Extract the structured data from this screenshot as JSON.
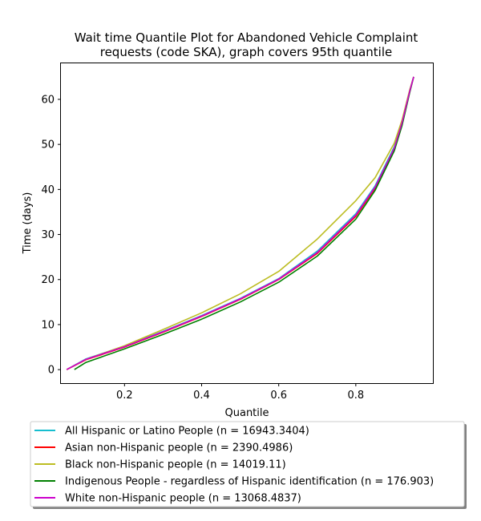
{
  "chart_data": {
    "type": "line",
    "title_lines": [
      "Wait time Quantile Plot for Abandoned Vehicle Complaint",
      "requests (code SKA), graph covers 95th quantile"
    ],
    "xlabel": "Quantile",
    "ylabel": "Time (days)",
    "xlim": [
      0.035,
      1.0
    ],
    "ylim": [
      -3,
      68
    ],
    "xticks": [
      0.2,
      0.4,
      0.6,
      0.8
    ],
    "xtick_labels": [
      "0.2",
      "0.4",
      "0.6",
      "0.8"
    ],
    "yticks": [
      0,
      10,
      20,
      30,
      40,
      50,
      60
    ],
    "ytick_labels": [
      "0",
      "10",
      "20",
      "30",
      "40",
      "50",
      "60"
    ],
    "grid": false,
    "legend_position": "below",
    "series": [
      {
        "name": "All Hispanic or Latino People (n = 16943.3404)",
        "color": "#17becf",
        "x": [
          0.05,
          0.1,
          0.2,
          0.3,
          0.4,
          0.5,
          0.6,
          0.7,
          0.8,
          0.85,
          0.9,
          0.92,
          0.94,
          0.95
        ],
        "y": [
          0,
          2.4,
          5.2,
          8.5,
          12.0,
          15.8,
          20.2,
          26.3,
          34.6,
          40.8,
          49.5,
          55.0,
          62.0,
          65.0
        ]
      },
      {
        "name": "Asian non-Hispanic people (n = 2390.4986)",
        "color": "#ff0000",
        "x": [
          0.05,
          0.1,
          0.2,
          0.3,
          0.4,
          0.5,
          0.6,
          0.7,
          0.8,
          0.85,
          0.9,
          0.92,
          0.94,
          0.95
        ],
        "y": [
          0,
          2.2,
          5.0,
          8.3,
          11.8,
          15.6,
          20.0,
          25.8,
          34.0,
          40.3,
          49.0,
          54.6,
          61.8,
          65.0
        ]
      },
      {
        "name": "Black non-Hispanic people (n = 14019.11)",
        "color": "#bcbd22",
        "x": [
          0.05,
          0.1,
          0.2,
          0.3,
          0.4,
          0.5,
          0.6,
          0.7,
          0.8,
          0.85,
          0.9,
          0.92,
          0.94,
          0.95
        ],
        "y": [
          0,
          2.3,
          5.3,
          8.9,
          12.6,
          16.8,
          21.8,
          29.0,
          37.5,
          42.6,
          50.3,
          55.4,
          62.2,
          65.0
        ]
      },
      {
        "name": "Indigenous People - regardless of Hispanic identification (n = 176.903)",
        "color": "#008000",
        "x": [
          0.07,
          0.1,
          0.2,
          0.3,
          0.4,
          0.5,
          0.6,
          0.7,
          0.8,
          0.85,
          0.9,
          0.92,
          0.94,
          0.95
        ],
        "y": [
          0,
          1.6,
          4.6,
          7.8,
          11.2,
          15.0,
          19.4,
          25.2,
          33.4,
          39.8,
          48.6,
          54.2,
          61.6,
          65.0
        ]
      },
      {
        "name": "White non-Hispanic people (n = 13068.4837)",
        "color": "#cc00cc",
        "x": [
          0.05,
          0.1,
          0.2,
          0.3,
          0.4,
          0.5,
          0.6,
          0.7,
          0.8,
          0.85,
          0.9,
          0.92,
          0.94,
          0.95
        ],
        "y": [
          0,
          2.3,
          5.1,
          8.4,
          11.9,
          15.7,
          20.1,
          26.0,
          34.3,
          40.5,
          49.2,
          54.8,
          61.9,
          65.0
        ]
      }
    ]
  }
}
